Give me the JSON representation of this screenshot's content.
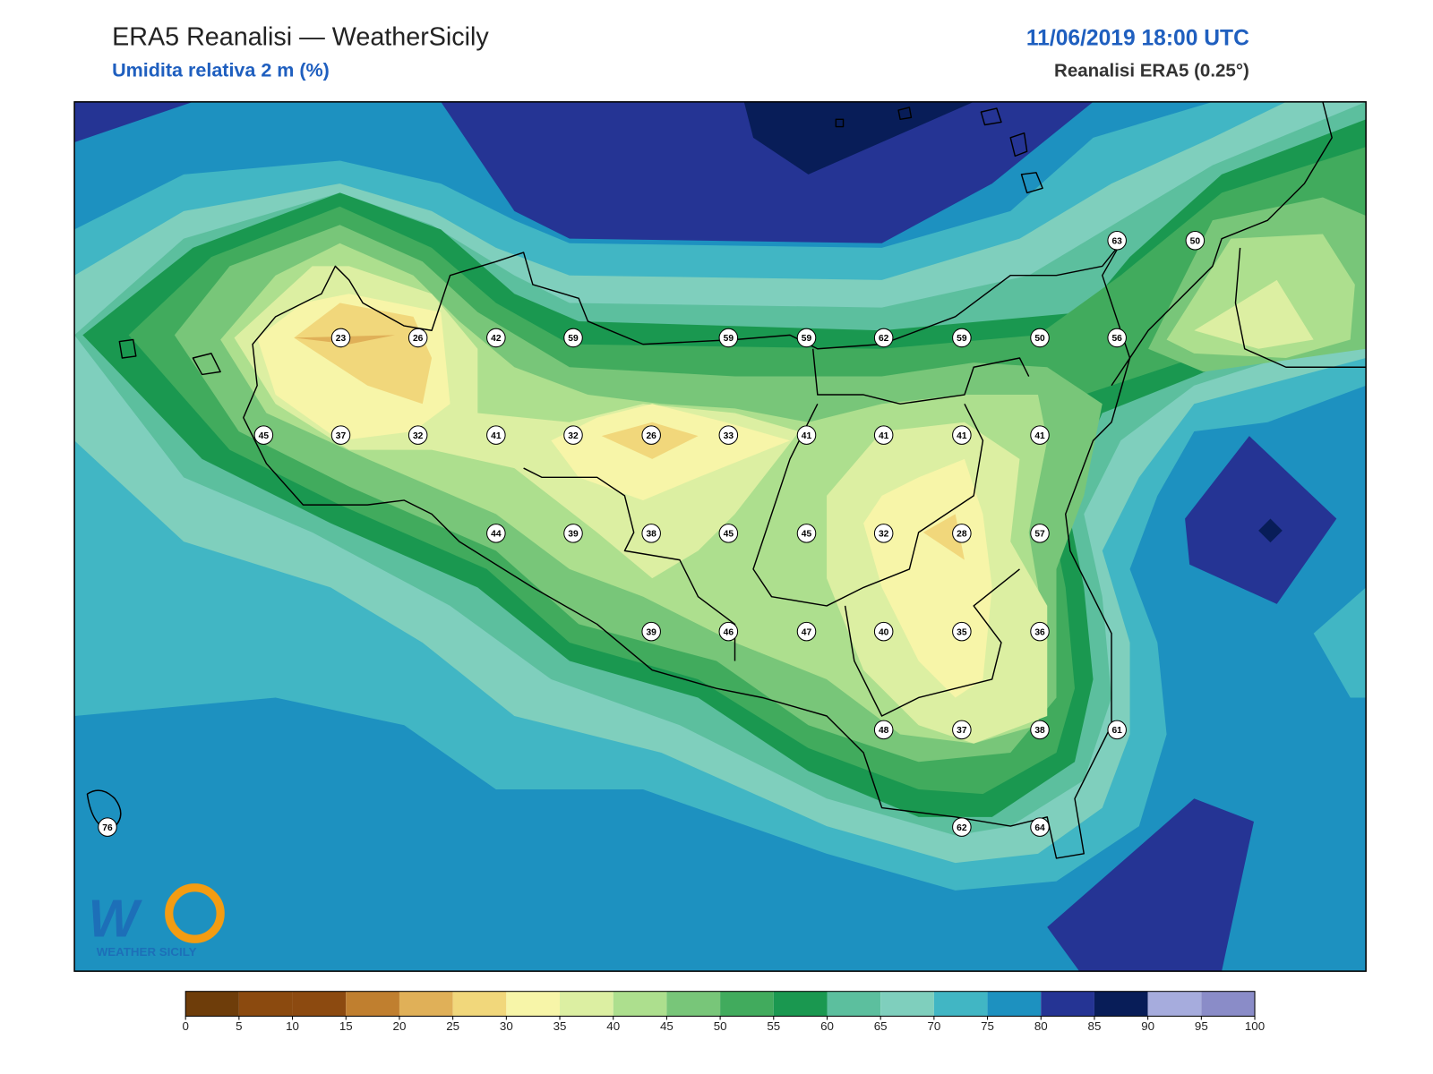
{
  "header": {
    "title": "ERA5 Reanalisi — WeatherSicily",
    "subtitle": "Umidita relativa 2 m (%)",
    "datetime": "11/06/2019 18:00 UTC",
    "source": "Reanalisi ERA5 (0.25°)"
  },
  "stations": [
    63,
    50,
    23,
    26,
    42,
    59,
    59,
    59,
    62,
    59,
    50,
    56,
    45,
    37,
    32,
    41,
    32,
    26,
    33,
    41,
    41,
    41,
    41,
    44,
    39,
    38,
    45,
    45,
    32,
    28,
    57,
    39,
    46,
    47,
    40,
    35,
    36,
    48,
    37,
    38,
    61,
    76,
    62,
    64
  ],
  "colorbar": {
    "ticks": [
      0,
      5,
      10,
      15,
      20,
      25,
      30,
      35,
      40,
      45,
      50,
      55,
      60,
      65,
      70,
      75,
      80,
      85,
      90,
      95,
      100
    ],
    "colors": [
      "#6e3d0a",
      "#8b4a0f",
      "#8c4a10",
      "#c07f2f",
      "#e0b058",
      "#f1d77b",
      "#f7f5a8",
      "#dcefa2",
      "#addf8e",
      "#78c679",
      "#41ab5d",
      "#1a9850",
      "#5cbf9e",
      "#7fcfbd",
      "#41b6c4",
      "#1d91c0",
      "#253494",
      "#081d58",
      "#a6acdd",
      "#8a8cc8"
    ]
  },
  "logo": {
    "text": "WEATHER SICILY"
  }
}
